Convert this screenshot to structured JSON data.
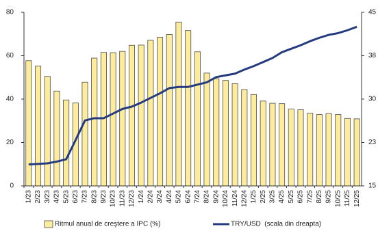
{
  "chart_data": {
    "type": "bar-line",
    "categories": [
      "1/23",
      "2/23",
      "3/23",
      "4/23",
      "5/23",
      "6/23",
      "7/23",
      "8/23",
      "9/23",
      "10/23",
      "11/23",
      "12/23",
      "1/24",
      "2/24",
      "3/24",
      "4/24",
      "5/24",
      "6/24",
      "7/24",
      "8/24",
      "9/24",
      "10/24",
      "11/24",
      "12/24",
      "1/25",
      "2/25",
      "3/25",
      "4/25",
      "5/25",
      "6/25",
      "7/25",
      "8/25",
      "9/25",
      "10/25",
      "11/25",
      "12/25"
    ],
    "series": [
      {
        "name": "Ritmul anual de creştere a IPC (%)",
        "type": "bar",
        "color": "#fcec9c",
        "edge": "#4a4a4a",
        "values": [
          57.7,
          55.2,
          50.5,
          43.7,
          39.6,
          38.2,
          47.8,
          58.9,
          61.5,
          61.4,
          62.0,
          64.8,
          64.9,
          67.1,
          68.5,
          69.8,
          75.5,
          71.6,
          61.8,
          52.0,
          49.4,
          48.6,
          47.1,
          44.4,
          42.1,
          39.1,
          38.1,
          37.9,
          35.4,
          35.1,
          33.5,
          32.9,
          33.3,
          32.9,
          31.1,
          30.9
        ]
      },
      {
        "name": "TRY/USD  (scala din dreapta)",
        "type": "line",
        "axis": "y2",
        "color": "#253b80",
        "values": [
          18.7,
          18.8,
          18.9,
          19.2,
          19.6,
          22.9,
          26.3,
          26.7,
          26.7,
          27.5,
          28.3,
          28.7,
          29.4,
          30.2,
          31.0,
          31.9,
          32.1,
          32.1,
          32.5,
          32.9,
          33.8,
          34.1,
          34.4,
          35.1,
          35.7,
          36.4,
          37.1,
          38.1,
          38.7,
          39.3,
          40.0,
          40.6,
          41.1,
          41.4,
          41.9,
          42.5
        ]
      }
    ],
    "ylim": [
      0,
      80
    ],
    "yticks": [
      0,
      20,
      40,
      60,
      80
    ],
    "y2lim": [
      15,
      45
    ],
    "y2ticks": [
      15,
      {
        "value": 22.5,
        "label": "23"
      },
      30,
      {
        "value": 37.5,
        "label": "38"
      },
      45
    ],
    "grid": false,
    "legend": "bottom"
  }
}
